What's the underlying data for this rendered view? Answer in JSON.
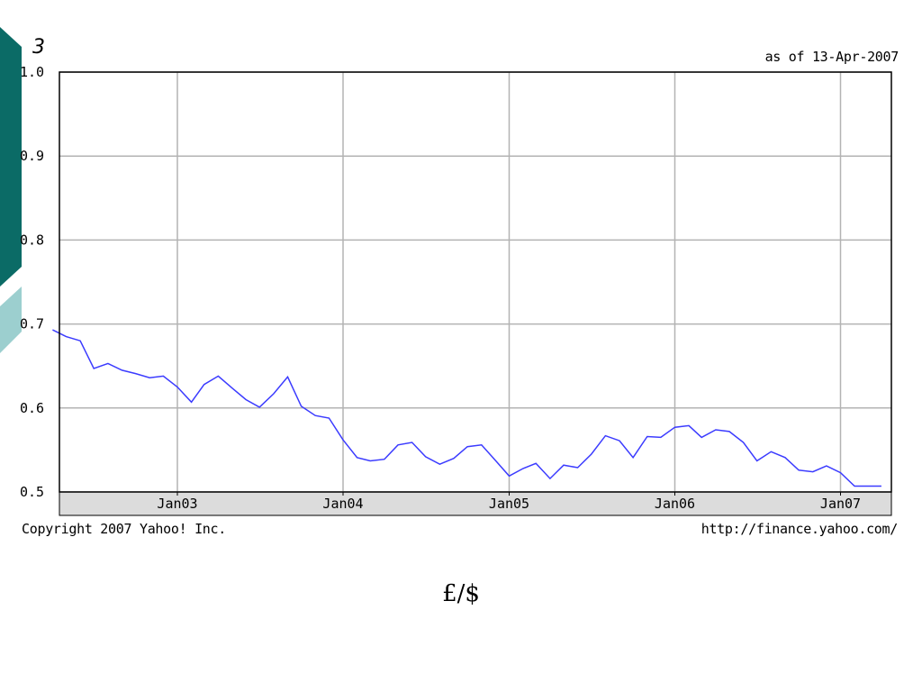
{
  "slide_number": "3",
  "header": {
    "as_of": "as of 13-Apr-2007"
  },
  "footer": {
    "copyright": "Copyright 2007 Yahoo! Inc.",
    "source_url": "http://finance.yahoo.com/"
  },
  "caption": "£/$",
  "colors": {
    "deco_dark": "#0b6b66",
    "deco_light": "#9ccfcf",
    "line": "#3b3bff",
    "grid": "#b3b3b3",
    "axis_band": "#dcdcdc"
  },
  "chart_data": {
    "type": "line",
    "title": "",
    "xlabel": "",
    "ylabel": "",
    "ylim": [
      0.5,
      1.0
    ],
    "yticks": [
      0.5,
      0.6,
      0.7,
      0.8,
      0.9,
      1.0
    ],
    "y_tick_labels": [
      "0.5",
      "0.6",
      "0.7",
      "0.8",
      "0.9",
      "1.0"
    ],
    "x_ticks": [
      {
        "label": "Jan03",
        "date": "2003-01-01"
      },
      {
        "label": "Jan04",
        "date": "2004-01-01"
      },
      {
        "label": "Jan05",
        "date": "2005-01-01"
      },
      {
        "label": "Jan06",
        "date": "2006-01-01"
      },
      {
        "label": "Jan07",
        "date": "2007-01-01"
      }
    ],
    "grid": true,
    "series": [
      {
        "values": [
          {
            "x": "2002-04",
            "y": 0.693
          },
          {
            "x": "2002-05",
            "y": 0.685
          },
          {
            "x": "2002-06",
            "y": 0.68
          },
          {
            "x": "2002-07",
            "y": 0.647
          },
          {
            "x": "2002-08",
            "y": 0.653
          },
          {
            "x": "2002-09",
            "y": 0.645
          },
          {
            "x": "2002-10",
            "y": 0.641
          },
          {
            "x": "2002-11",
            "y": 0.636
          },
          {
            "x": "2002-12",
            "y": 0.638
          },
          {
            "x": "2003-01",
            "y": 0.625
          },
          {
            "x": "2003-02",
            "y": 0.607
          },
          {
            "x": "2003-03",
            "y": 0.628
          },
          {
            "x": "2003-04",
            "y": 0.638
          },
          {
            "x": "2003-05",
            "y": 0.624
          },
          {
            "x": "2003-06",
            "y": 0.61
          },
          {
            "x": "2003-07",
            "y": 0.601
          },
          {
            "x": "2003-08",
            "y": 0.617
          },
          {
            "x": "2003-09",
            "y": 0.637
          },
          {
            "x": "2003-10",
            "y": 0.602
          },
          {
            "x": "2003-11",
            "y": 0.591
          },
          {
            "x": "2003-12",
            "y": 0.588
          },
          {
            "x": "2004-01",
            "y": 0.562
          },
          {
            "x": "2004-02",
            "y": 0.541
          },
          {
            "x": "2004-03",
            "y": 0.537
          },
          {
            "x": "2004-04",
            "y": 0.539
          },
          {
            "x": "2004-05",
            "y": 0.556
          },
          {
            "x": "2004-06",
            "y": 0.559
          },
          {
            "x": "2004-07",
            "y": 0.542
          },
          {
            "x": "2004-08",
            "y": 0.533
          },
          {
            "x": "2004-09",
            "y": 0.54
          },
          {
            "x": "2004-10",
            "y": 0.554
          },
          {
            "x": "2004-11",
            "y": 0.556
          },
          {
            "x": "2004-12",
            "y": 0.538
          },
          {
            "x": "2005-01",
            "y": 0.519
          },
          {
            "x": "2005-02",
            "y": 0.528
          },
          {
            "x": "2005-03",
            "y": 0.534
          },
          {
            "x": "2005-04",
            "y": 0.516
          },
          {
            "x": "2005-05",
            "y": 0.532
          },
          {
            "x": "2005-06",
            "y": 0.529
          },
          {
            "x": "2005-07",
            "y": 0.545
          },
          {
            "x": "2005-08",
            "y": 0.567
          },
          {
            "x": "2005-09",
            "y": 0.561
          },
          {
            "x": "2005-10",
            "y": 0.541
          },
          {
            "x": "2005-11",
            "y": 0.566
          },
          {
            "x": "2005-12",
            "y": 0.565
          },
          {
            "x": "2006-01",
            "y": 0.577
          },
          {
            "x": "2006-02",
            "y": 0.579
          },
          {
            "x": "2006-03",
            "y": 0.565
          },
          {
            "x": "2006-04",
            "y": 0.574
          },
          {
            "x": "2006-05",
            "y": 0.572
          },
          {
            "x": "2006-06",
            "y": 0.559
          },
          {
            "x": "2006-07",
            "y": 0.537
          },
          {
            "x": "2006-08",
            "y": 0.548
          },
          {
            "x": "2006-09",
            "y": 0.541
          },
          {
            "x": "2006-10",
            "y": 0.526
          },
          {
            "x": "2006-11",
            "y": 0.524
          },
          {
            "x": "2006-12",
            "y": 0.531
          },
          {
            "x": "2007-01",
            "y": 0.523
          },
          {
            "x": "2007-02",
            "y": 0.507
          },
          {
            "x": "2007-03",
            "y": 0.507
          },
          {
            "x": "2007-04",
            "y": 0.507
          }
        ]
      }
    ]
  }
}
